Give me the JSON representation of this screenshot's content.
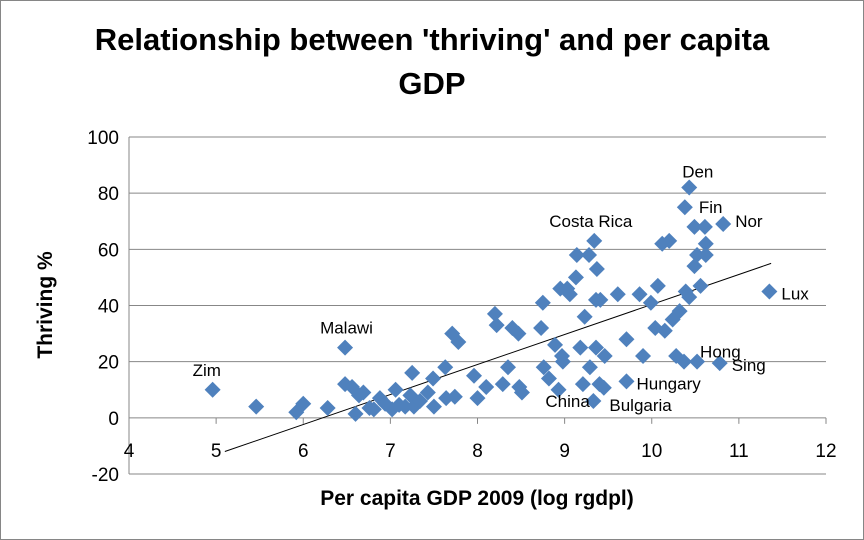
{
  "chart_data": {
    "type": "scatter",
    "title": "Relationship between 'thriving' and per capita GDP",
    "xlabel": "Per capita GDP 2009  (log rgdpl)",
    "ylabel": "Thriving %",
    "xlim": [
      4,
      12
    ],
    "ylim": [
      -20,
      100
    ],
    "xticks": [
      4,
      5,
      6,
      7,
      8,
      9,
      10,
      11,
      12
    ],
    "yticks": [
      -20,
      0,
      20,
      40,
      60,
      80,
      100
    ],
    "grid": "horizontal",
    "legend": "none",
    "marker_color": "#4F81BD",
    "points": [
      [
        4.96,
        10
      ],
      [
        5.46,
        4
      ],
      [
        5.92,
        2
      ],
      [
        6.0,
        5
      ],
      [
        6.28,
        3.5
      ],
      [
        6.48,
        25
      ],
      [
        6.48,
        12
      ],
      [
        6.56,
        11
      ],
      [
        6.6,
        1.4
      ],
      [
        6.64,
        8
      ],
      [
        6.69,
        9
      ],
      [
        6.76,
        3.5
      ],
      [
        6.81,
        3
      ],
      [
        6.88,
        7
      ],
      [
        6.94,
        5
      ],
      [
        7.02,
        3
      ],
      [
        7.06,
        10
      ],
      [
        7.1,
        4.6
      ],
      [
        7.17,
        4
      ],
      [
        7.23,
        8
      ],
      [
        7.25,
        16
      ],
      [
        7.27,
        4
      ],
      [
        7.34,
        6
      ],
      [
        7.43,
        9
      ],
      [
        7.49,
        14
      ],
      [
        7.5,
        4
      ],
      [
        7.63,
        18
      ],
      [
        7.64,
        7
      ],
      [
        7.71,
        30
      ],
      [
        7.74,
        7.5
      ],
      [
        7.78,
        27
      ],
      [
        7.96,
        15
      ],
      [
        8.0,
        7
      ],
      [
        8.1,
        11
      ],
      [
        8.2,
        37
      ],
      [
        8.22,
        33
      ],
      [
        8.29,
        12
      ],
      [
        8.35,
        18
      ],
      [
        8.4,
        32
      ],
      [
        8.47,
        30
      ],
      [
        8.48,
        11
      ],
      [
        8.51,
        9
      ],
      [
        8.73,
        32
      ],
      [
        8.75,
        41
      ],
      [
        8.76,
        18
      ],
      [
        8.82,
        14
      ],
      [
        8.89,
        26
      ],
      [
        8.93,
        10
      ],
      [
        8.95,
        46
      ],
      [
        8.97,
        22
      ],
      [
        8.98,
        20
      ],
      [
        9.03,
        46
      ],
      [
        9.06,
        44
      ],
      [
        9.13,
        50
      ],
      [
        9.14,
        58
      ],
      [
        9.18,
        25
      ],
      [
        9.21,
        12
      ],
      [
        9.23,
        36
      ],
      [
        9.28,
        58
      ],
      [
        9.29,
        18
      ],
      [
        9.34,
        63
      ],
      [
        9.36,
        42
      ],
      [
        9.33,
        6
      ],
      [
        9.37,
        53
      ],
      [
        9.36,
        25
      ],
      [
        9.4,
        12
      ],
      [
        9.41,
        42
      ],
      [
        9.45,
        10.7
      ],
      [
        9.46,
        22
      ],
      [
        9.71,
        13
      ],
      [
        9.61,
        44
      ],
      [
        9.71,
        28
      ],
      [
        9.86,
        44
      ],
      [
        9.9,
        22
      ],
      [
        9.99,
        41
      ],
      [
        10.04,
        32
      ],
      [
        10.07,
        47
      ],
      [
        10.12,
        62
      ],
      [
        10.15,
        31
      ],
      [
        10.2,
        63
      ],
      [
        10.24,
        35
      ],
      [
        10.28,
        22
      ],
      [
        10.32,
        38
      ],
      [
        10.37,
        20
      ],
      [
        10.38,
        75
      ],
      [
        10.43,
        82
      ],
      [
        10.39,
        45
      ],
      [
        10.43,
        43
      ],
      [
        10.49,
        68
      ],
      [
        10.52,
        20
      ],
      [
        10.52,
        58
      ],
      [
        10.49,
        54
      ],
      [
        10.56,
        47
      ],
      [
        10.61,
        68
      ],
      [
        10.62,
        62
      ],
      [
        10.62,
        58
      ],
      [
        10.78,
        19.5
      ],
      [
        10.82,
        69
      ],
      [
        11.35,
        45
      ]
    ],
    "trendline": {
      "x": [
        5.1,
        11.37
      ],
      "y": [
        -12,
        55
      ]
    },
    "annotations": [
      {
        "text": "Zim",
        "x": 4.96,
        "y": 10
      },
      {
        "text": "Malawi",
        "x": 6.48,
        "y": 25
      },
      {
        "text": "Costa Rica",
        "x": 9.34,
        "y": 63
      },
      {
        "text": "Den",
        "x": 10.43,
        "y": 82
      },
      {
        "text": "Fin",
        "x": 10.38,
        "y": 75
      },
      {
        "text": "Nor",
        "x": 10.82,
        "y": 69
      },
      {
        "text": "Lux",
        "x": 11.35,
        "y": 45
      },
      {
        "text": "Hong",
        "x": 10.52,
        "y": 20
      },
      {
        "text": "Sing",
        "x": 10.78,
        "y": 19.5
      },
      {
        "text": "Hungary",
        "x": 9.71,
        "y": 13
      },
      {
        "text": "China",
        "x": 9.33,
        "y": 6
      },
      {
        "text": "Bulgaria",
        "x": 9.33,
        "y": 6
      }
    ]
  }
}
